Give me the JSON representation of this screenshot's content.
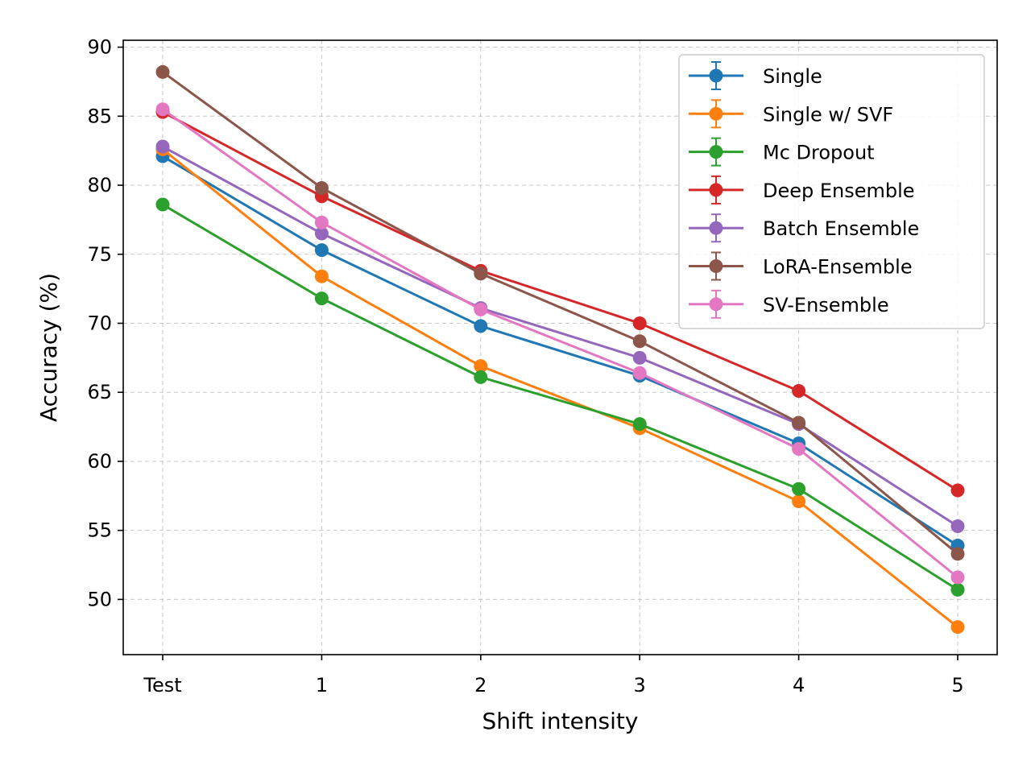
{
  "chart_data": {
    "type": "line",
    "xlabel": "Shift intensity",
    "ylabel": "Accuracy (%)",
    "categories": [
      "Test",
      "1",
      "2",
      "3",
      "4",
      "5"
    ],
    "ylim": [
      46,
      90.5
    ],
    "yticks": [
      50,
      55,
      60,
      65,
      70,
      75,
      80,
      85,
      90
    ],
    "grid": true,
    "legend_position": "top-right",
    "series": [
      {
        "name": "Single",
        "color": "#1f77b4",
        "values": [
          82.1,
          75.3,
          69.8,
          66.2,
          61.3,
          53.9
        ]
      },
      {
        "name": "Single w/ SVF",
        "color": "#ff7f0e",
        "values": [
          82.6,
          73.4,
          66.9,
          62.4,
          57.1,
          48.0
        ]
      },
      {
        "name": "Mc Dropout",
        "color": "#2ca02c",
        "values": [
          78.6,
          71.8,
          66.1,
          62.7,
          58.0,
          50.7
        ]
      },
      {
        "name": "Deep Ensemble",
        "color": "#d62728",
        "values": [
          85.3,
          79.2,
          73.8,
          70.0,
          65.1,
          57.9
        ]
      },
      {
        "name": "Batch Ensemble",
        "color": "#9467bd",
        "values": [
          82.8,
          76.5,
          71.1,
          67.5,
          62.7,
          55.3
        ]
      },
      {
        "name": "LoRA-Ensemble",
        "color": "#8c564b",
        "values": [
          88.2,
          79.8,
          73.6,
          68.7,
          62.8,
          53.3
        ]
      },
      {
        "name": "SV-Ensemble",
        "color": "#e377c2",
        "values": [
          85.5,
          77.3,
          71.0,
          66.4,
          60.9,
          51.6
        ]
      }
    ]
  }
}
